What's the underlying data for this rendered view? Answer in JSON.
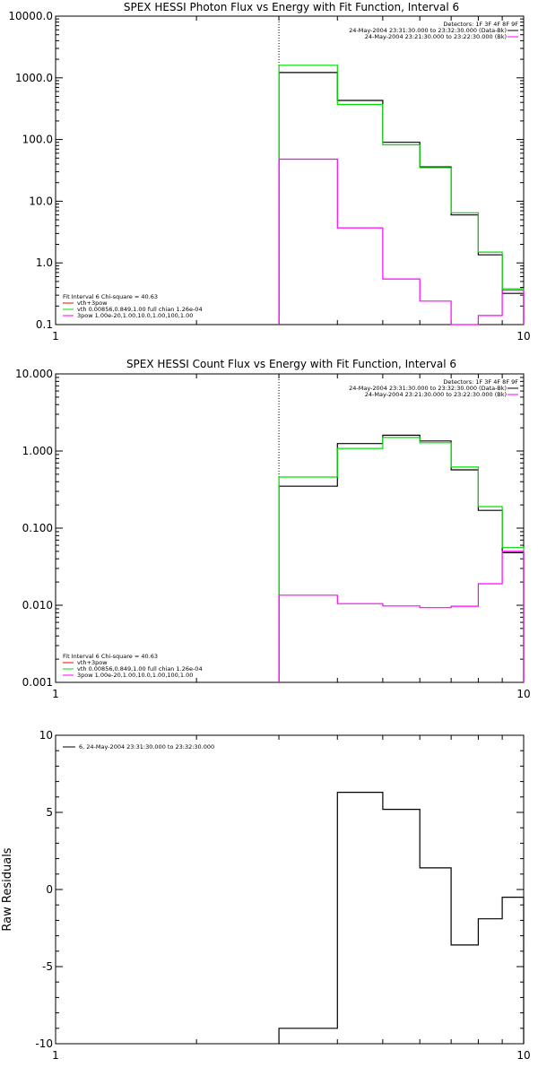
{
  "colors": {
    "data": "#000000",
    "fit_total": "#ff00ff",
    "fit_vth": "#ff0000",
    "fit_green": "#00dd00",
    "bkg": "#ff00ff"
  },
  "chart_data": [
    {
      "type": "line",
      "step": true,
      "title": "SPEX HESSI Photon Flux vs Energy with Fit Function, Interval 6",
      "xscale": "log",
      "yscale": "log",
      "xlim": [
        1,
        10
      ],
      "ylim": [
        0.1,
        10000
      ],
      "yticks": [
        "0.1",
        "1.0",
        "10.0",
        "100.0",
        "1000.0",
        "10000.0"
      ],
      "xticks": [
        "1",
        "10"
      ],
      "x_marker": 3,
      "legend_top": [
        "Detectors: 1F 3F 4F 8F 9F",
        "24-May-2004 23:31:30.000 to 23:32:30.000 (Data-Bk)",
        "24-May-2004 23:21:30.000 to 23:22:30.000 (Bk)"
      ],
      "legend_bottom": [
        "Fit Interval 6   Chi-square = 40.63",
        "vth+3pow",
        "vth 0.00856,0.849,1.00  full chian 1.26e-04",
        "3pow 1.00e-20,1.00,10.0,1.00,100,1.00"
      ],
      "bin_edges": [
        3,
        4,
        5,
        6,
        7,
        8,
        9,
        10
      ],
      "series": [
        {
          "name": "24-May-2004 23:31:30.000 to 23:32:30.000 (Data-Bk)",
          "color": "#000000",
          "values": [
            1220,
            430,
            90,
            36,
            6,
            1.35,
            0.32
          ]
        },
        {
          "name": "",
          "color": "#00dd00",
          "values": [
            1600,
            370,
            82,
            35,
            6.5,
            1.5,
            0.38
          ]
        },
        {
          "name": "24-May-2004 23:21:30.000 to 23:22:30.000 (Bk)",
          "color": "#ff00ff",
          "values": [
            48,
            3.7,
            0.55,
            0.24,
            0.1,
            0.14,
            0.36
          ]
        }
      ]
    },
    {
      "type": "line",
      "step": true,
      "title": "SPEX HESSI Count Flux vs Energy with Fit Function, Interval 6",
      "xscale": "log",
      "yscale": "log",
      "xlim": [
        1,
        10
      ],
      "ylim": [
        0.001,
        10
      ],
      "yticks": [
        "0.001",
        "0.010",
        "0.100",
        "1.000",
        "10.000"
      ],
      "xticks": [
        "1",
        "10"
      ],
      "x_marker": 3,
      "legend_top": [
        "Detectors: 1F 3F 4F 8F 9F",
        "24-May-2004 23:31:30.000 to 23:32:30.000 (Data-Bk)",
        "24-May-2004 23:21:30.000 to 23:22:30.000 (Bk)"
      ],
      "legend_bottom": [
        "Fit Interval 6   Chi-square = 40.63",
        "vth+3pow",
        "vth 0.00856,0.849,1.00  full chian 1.26e-04",
        "3pow 1.00e-20,1.00,10.0,1.00,100,1.00"
      ],
      "bin_edges": [
        3,
        4,
        5,
        6,
        7,
        8,
        9,
        10
      ],
      "series": [
        {
          "name": "24-May-2004 23:31:30.000 to 23:32:30.000 (Data-Bk)",
          "color": "#000000",
          "values": [
            0.35,
            1.25,
            1.6,
            1.35,
            0.57,
            0.17,
            0.048
          ]
        },
        {
          "name": "",
          "color": "#00dd00",
          "values": [
            0.46,
            1.08,
            1.5,
            1.28,
            0.62,
            0.19,
            0.056
          ]
        },
        {
          "name": "24-May-2004 23:21:30.000 to 23:22:30.000 (Bk)",
          "color": "#ff00ff",
          "values": [
            0.0135,
            0.0105,
            0.0098,
            0.0093,
            0.0097,
            0.019,
            0.05
          ]
        }
      ]
    },
    {
      "type": "line",
      "step": true,
      "title": "",
      "xscale": "log",
      "yscale": "linear",
      "xlim": [
        1,
        10
      ],
      "ylim": [
        -10,
        10
      ],
      "yticks": [
        "-10",
        "-5",
        "0",
        "5",
        "10"
      ],
      "xticks": [
        "1",
        "10"
      ],
      "ylabel": "Raw Residuals",
      "legend_top": [
        "6, 24-May-2004 23:31:30.000 to 23:32:30.000"
      ],
      "bin_edges": [
        3,
        4,
        5,
        6,
        7,
        8,
        9,
        10
      ],
      "series": [
        {
          "name": "6, 24-May-2004 23:31:30.000 to 23:32:30.000",
          "color": "#000000",
          "values": [
            -9,
            6.3,
            5.2,
            1.4,
            -3.6,
            -1.9,
            -0.5
          ]
        }
      ]
    }
  ]
}
